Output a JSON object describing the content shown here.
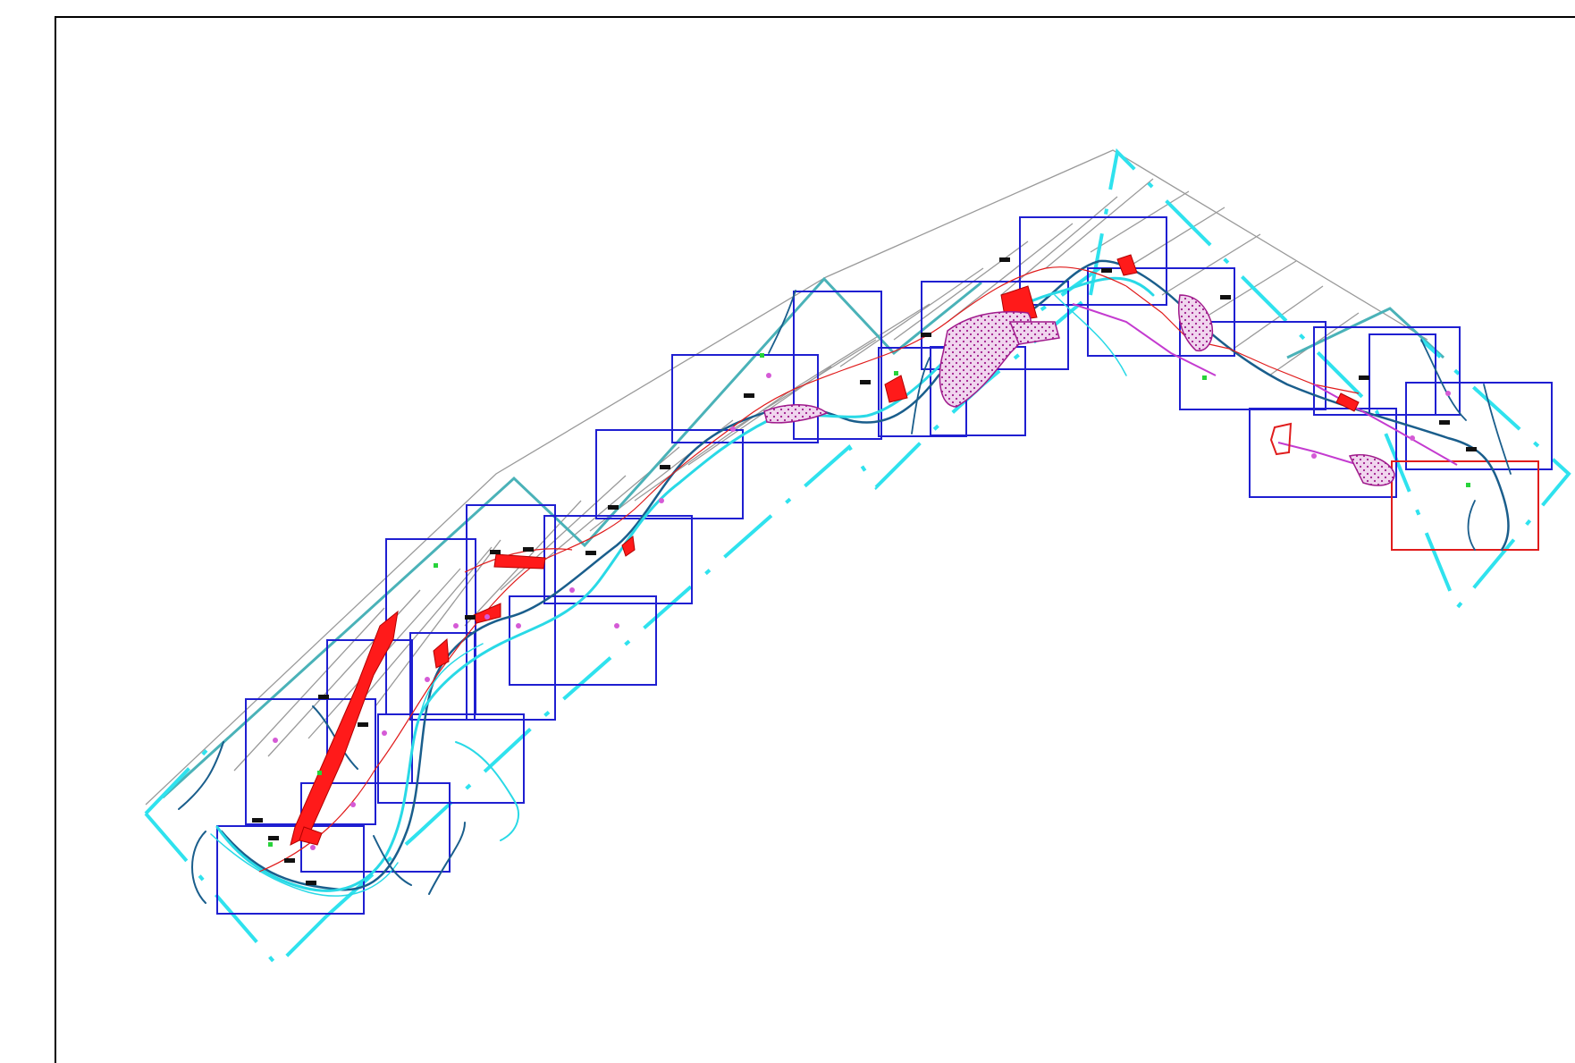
{
  "drawing": {
    "type": "cad-site-plan",
    "background": "#ffffff",
    "colors": {
      "frame": "#000000",
      "sheet_box": "#1f1fd1",
      "sheet_box_alt": "#e01c1c",
      "river_main": "#1a5e8c",
      "river_secondary": "#29d9e6",
      "boundary_dashed": "#2fe2ee",
      "boundary_gray": "#9a9a9a",
      "boundary_teal": "#4ab2b8",
      "road": "#e01c1c",
      "settlement": "#ff1a1a",
      "hatch_area": "#a01a8c",
      "point_marker": "#d55ad6",
      "point_marker_green": "#27d33a",
      "label_tag": "#111111"
    },
    "icons": [
      "drawing-frame",
      "sheet-boxes",
      "river-lines",
      "boundary-lines",
      "settlement-fills",
      "hatched-areas",
      "point-markers",
      "label-tags"
    ]
  }
}
